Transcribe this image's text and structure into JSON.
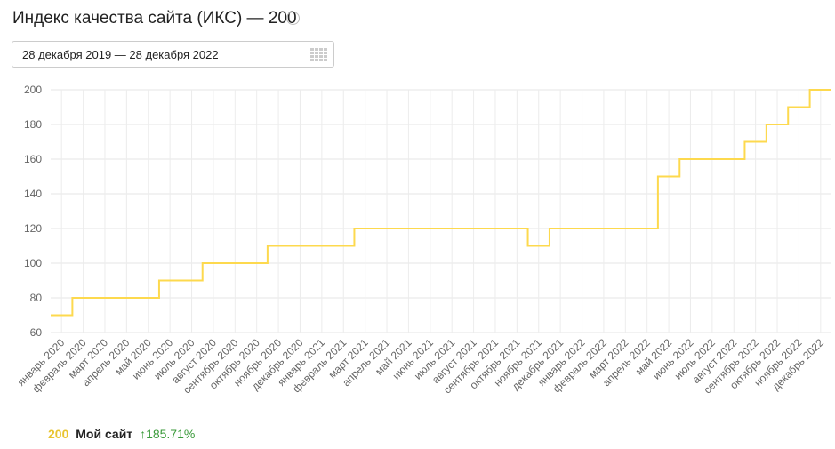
{
  "chart_data": {
    "type": "step-line",
    "title": "Индекс качества сайта (ИКС) — 200",
    "subtitle": "28 декабря 2019 — 28 декабря 2022",
    "categories": [
      "январь 2020",
      "февраль 2020",
      "март 2020",
      "апрель 2020",
      "май 2020",
      "июнь 2020",
      "июль 2020",
      "август 2020",
      "сентябрь 2020",
      "октябрь 2020",
      "ноябрь 2020",
      "декабрь 2020",
      "январь 2021",
      "февраль 2021",
      "март 2021",
      "апрель 2021",
      "май 2021",
      "июнь 2021",
      "июль 2021",
      "август 2021",
      "сентябрь 2021",
      "октябрь 2021",
      "ноябрь 2021",
      "декабрь 2021",
      "январь 2022",
      "февраль 2022",
      "март 2022",
      "апрель 2022",
      "май 2022",
      "июнь 2022",
      "июль 2022",
      "август 2022",
      "сентябрь 2022",
      "октябрь 2022",
      "ноябрь 2022",
      "декабрь 2022"
    ],
    "series": [
      {
        "name": "Мой сайт",
        "color": "#fdd94e",
        "values": [
          70,
          80,
          80,
          80,
          80,
          90,
          90,
          100,
          100,
          100,
          110,
          110,
          110,
          110,
          120,
          120,
          120,
          120,
          120,
          120,
          120,
          120,
          110,
          120,
          120,
          120,
          120,
          120,
          150,
          160,
          160,
          160,
          170,
          180,
          190,
          200
        ]
      }
    ],
    "ylim": [
      60,
      200
    ],
    "yticks": [
      60,
      80,
      100,
      120,
      140,
      160,
      180,
      200
    ],
    "grid": true,
    "legend": {
      "value": "200",
      "change": "185.71%"
    }
  }
}
